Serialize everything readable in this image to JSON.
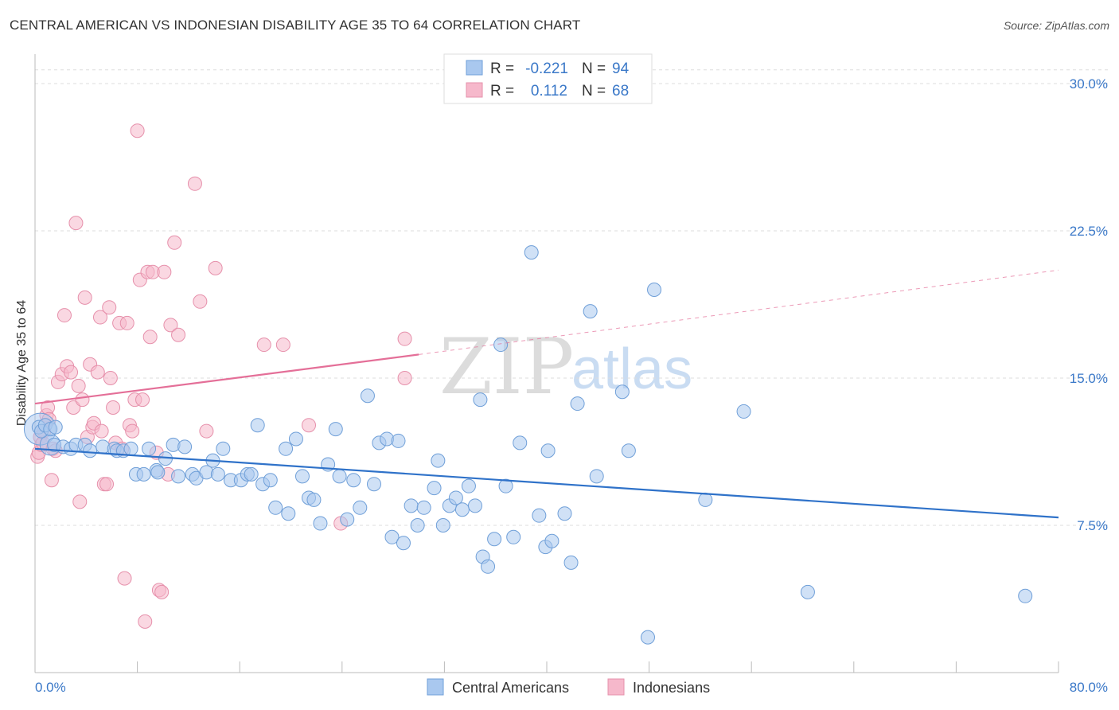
{
  "header": {
    "title": "CENTRAL AMERICAN VS INDONESIAN DISABILITY AGE 35 TO 64 CORRELATION CHART",
    "source": "Source: ZipAtlas.com"
  },
  "watermark": {
    "zip": "ZIP",
    "atlas": "atlas"
  },
  "legend": {
    "rows": [
      {
        "r_label": "R =",
        "r_value": "-0.221",
        "n_label": "N =",
        "n_value": "94",
        "color": "#a9c8ef"
      },
      {
        "r_label": "R =",
        "r_value": "0.112",
        "n_label": "N =",
        "n_value": "68",
        "color": "#f6b8cb"
      }
    ]
  },
  "bottom_legend": [
    {
      "label": "Central Americans",
      "color": "#a9c8ef"
    },
    {
      "label": "Indonesians",
      "color": "#f6b8cb"
    }
  ],
  "chart_data": {
    "type": "scatter",
    "title": "CENTRAL AMERICAN VS INDONESIAN DISABILITY AGE 35 TO 64 CORRELATION CHART",
    "xlabel": "",
    "ylabel": "Disability Age 35 to 64",
    "xlim": [
      0,
      80
    ],
    "ylim": [
      0,
      31.5
    ],
    "x_tick_labels": [
      "0.0%",
      "80.0%"
    ],
    "y_ticks": [
      7.5,
      15.0,
      22.5,
      30.0
    ],
    "y_tick_labels": [
      "7.5%",
      "15.0%",
      "22.5%",
      "30.0%"
    ],
    "grid": true,
    "legend_position": "top-center",
    "series": [
      {
        "name": "Central Americans",
        "color": "#a9c8ef",
        "stroke": "#6f9fd8",
        "trend": {
          "x0": 0,
          "y0": 11.4,
          "x1": 80,
          "y1": 7.9,
          "color": "#2f72c9"
        },
        "points": [
          [
            0.3,
            12.5
          ],
          [
            0.5,
            12.3
          ],
          [
            0.8,
            12.6
          ],
          [
            1.2,
            12.4
          ],
          [
            1.6,
            12.5
          ],
          [
            1.5,
            11.6
          ],
          [
            2.2,
            11.5
          ],
          [
            2.8,
            11.4
          ],
          [
            3.2,
            11.6
          ],
          [
            3.9,
            11.6
          ],
          [
            4.3,
            11.3
          ],
          [
            5.3,
            11.5
          ],
          [
            6.2,
            11.4
          ],
          [
            6.4,
            11.3
          ],
          [
            6.9,
            11.3
          ],
          [
            7.5,
            11.4
          ],
          [
            7.9,
            10.1
          ],
          [
            8.5,
            10.1
          ],
          [
            8.9,
            11.4
          ],
          [
            9.5,
            10.3
          ],
          [
            9.6,
            10.2
          ],
          [
            10.2,
            10.9
          ],
          [
            10.8,
            11.6
          ],
          [
            11.2,
            10.0
          ],
          [
            11.7,
            11.5
          ],
          [
            12.3,
            10.1
          ],
          [
            12.6,
            9.9
          ],
          [
            13.4,
            10.2
          ],
          [
            13.9,
            10.8
          ],
          [
            14.3,
            10.1
          ],
          [
            14.7,
            11.4
          ],
          [
            15.3,
            9.8
          ],
          [
            16.1,
            9.8
          ],
          [
            16.6,
            10.1
          ],
          [
            16.9,
            10.1
          ],
          [
            17.4,
            12.6
          ],
          [
            17.8,
            9.6
          ],
          [
            18.4,
            9.8
          ],
          [
            18.8,
            8.4
          ],
          [
            19.6,
            11.4
          ],
          [
            19.8,
            8.1
          ],
          [
            20.4,
            11.9
          ],
          [
            20.9,
            10.0
          ],
          [
            21.4,
            8.9
          ],
          [
            21.8,
            8.8
          ],
          [
            22.3,
            7.6
          ],
          [
            22.9,
            10.6
          ],
          [
            23.5,
            12.4
          ],
          [
            23.8,
            10.0
          ],
          [
            24.4,
            7.8
          ],
          [
            24.9,
            9.8
          ],
          [
            25.4,
            8.4
          ],
          [
            26.0,
            14.1
          ],
          [
            26.5,
            9.6
          ],
          [
            26.9,
            11.7
          ],
          [
            27.5,
            11.9
          ],
          [
            27.9,
            6.9
          ],
          [
            28.4,
            11.8
          ],
          [
            28.8,
            6.6
          ],
          [
            29.4,
            8.5
          ],
          [
            29.9,
            7.5
          ],
          [
            30.4,
            8.4
          ],
          [
            31.2,
            9.4
          ],
          [
            31.5,
            10.8
          ],
          [
            31.9,
            7.5
          ],
          [
            32.4,
            8.5
          ],
          [
            32.9,
            8.9
          ],
          [
            33.4,
            8.3
          ],
          [
            33.9,
            9.5
          ],
          [
            34.4,
            8.5
          ],
          [
            34.8,
            13.9
          ],
          [
            35.0,
            5.9
          ],
          [
            35.4,
            5.4
          ],
          [
            35.9,
            6.8
          ],
          [
            36.4,
            16.7
          ],
          [
            36.8,
            9.5
          ],
          [
            37.4,
            6.9
          ],
          [
            37.9,
            11.7
          ],
          [
            38.8,
            21.4
          ],
          [
            39.4,
            8.0
          ],
          [
            39.9,
            6.4
          ],
          [
            40.1,
            11.3
          ],
          [
            40.4,
            6.7
          ],
          [
            41.4,
            8.1
          ],
          [
            41.9,
            5.6
          ],
          [
            42.4,
            13.7
          ],
          [
            43.4,
            18.4
          ],
          [
            43.9,
            10.0
          ],
          [
            45.9,
            14.3
          ],
          [
            46.4,
            11.3
          ],
          [
            47.9,
            1.8
          ],
          [
            48.4,
            19.5
          ],
          [
            52.4,
            8.8
          ],
          [
            55.4,
            13.3
          ],
          [
            60.4,
            4.1
          ],
          [
            77.4,
            3.9
          ]
        ]
      },
      {
        "name": "Indonesians",
        "color": "#f6b8cb",
        "stroke": "#e690ab",
        "trend": {
          "x0": 0,
          "y0": 13.7,
          "x1": 30,
          "y1": 16.2,
          "x2": 80,
          "y2": 20.5,
          "color": "#e46f98"
        },
        "points": [
          [
            0.2,
            11.0
          ],
          [
            0.3,
            11.2
          ],
          [
            0.4,
            12.0
          ],
          [
            0.5,
            11.6
          ],
          [
            0.6,
            11.7
          ],
          [
            0.7,
            12.3
          ],
          [
            0.9,
            13.1
          ],
          [
            1.0,
            13.5
          ],
          [
            1.1,
            12.9
          ],
          [
            1.3,
            9.8
          ],
          [
            1.4,
            11.4
          ],
          [
            1.6,
            11.3
          ],
          [
            1.8,
            14.8
          ],
          [
            2.1,
            15.2
          ],
          [
            2.3,
            18.2
          ],
          [
            2.5,
            15.6
          ],
          [
            2.8,
            15.3
          ],
          [
            3.0,
            13.5
          ],
          [
            3.2,
            22.9
          ],
          [
            3.4,
            14.6
          ],
          [
            3.5,
            8.7
          ],
          [
            3.7,
            13.9
          ],
          [
            3.9,
            19.1
          ],
          [
            4.1,
            12.0
          ],
          [
            4.3,
            15.7
          ],
          [
            4.5,
            12.5
          ],
          [
            4.6,
            12.7
          ],
          [
            4.9,
            15.3
          ],
          [
            5.1,
            18.1
          ],
          [
            5.2,
            12.3
          ],
          [
            5.4,
            9.6
          ],
          [
            5.6,
            9.6
          ],
          [
            5.8,
            18.6
          ],
          [
            5.9,
            15.0
          ],
          [
            6.1,
            13.5
          ],
          [
            6.3,
            11.7
          ],
          [
            6.6,
            17.8
          ],
          [
            6.8,
            11.4
          ],
          [
            7.0,
            4.8
          ],
          [
            7.2,
            17.8
          ],
          [
            7.4,
            12.6
          ],
          [
            7.6,
            12.3
          ],
          [
            7.8,
            13.9
          ],
          [
            8.0,
            27.6
          ],
          [
            8.2,
            20.0
          ],
          [
            8.4,
            13.9
          ],
          [
            8.6,
            2.6
          ],
          [
            8.8,
            20.4
          ],
          [
            9.0,
            17.1
          ],
          [
            9.2,
            20.4
          ],
          [
            9.5,
            11.2
          ],
          [
            9.7,
            4.2
          ],
          [
            9.9,
            4.1
          ],
          [
            10.1,
            20.4
          ],
          [
            10.4,
            10.1
          ],
          [
            10.6,
            17.7
          ],
          [
            10.9,
            21.9
          ],
          [
            11.2,
            17.2
          ],
          [
            12.5,
            24.9
          ],
          [
            12.9,
            18.9
          ],
          [
            13.4,
            12.3
          ],
          [
            14.1,
            20.6
          ],
          [
            17.9,
            16.7
          ],
          [
            19.4,
            16.7
          ],
          [
            21.4,
            12.6
          ],
          [
            23.9,
            7.6
          ],
          [
            28.9,
            15.0
          ],
          [
            28.9,
            17.0
          ]
        ]
      }
    ]
  }
}
